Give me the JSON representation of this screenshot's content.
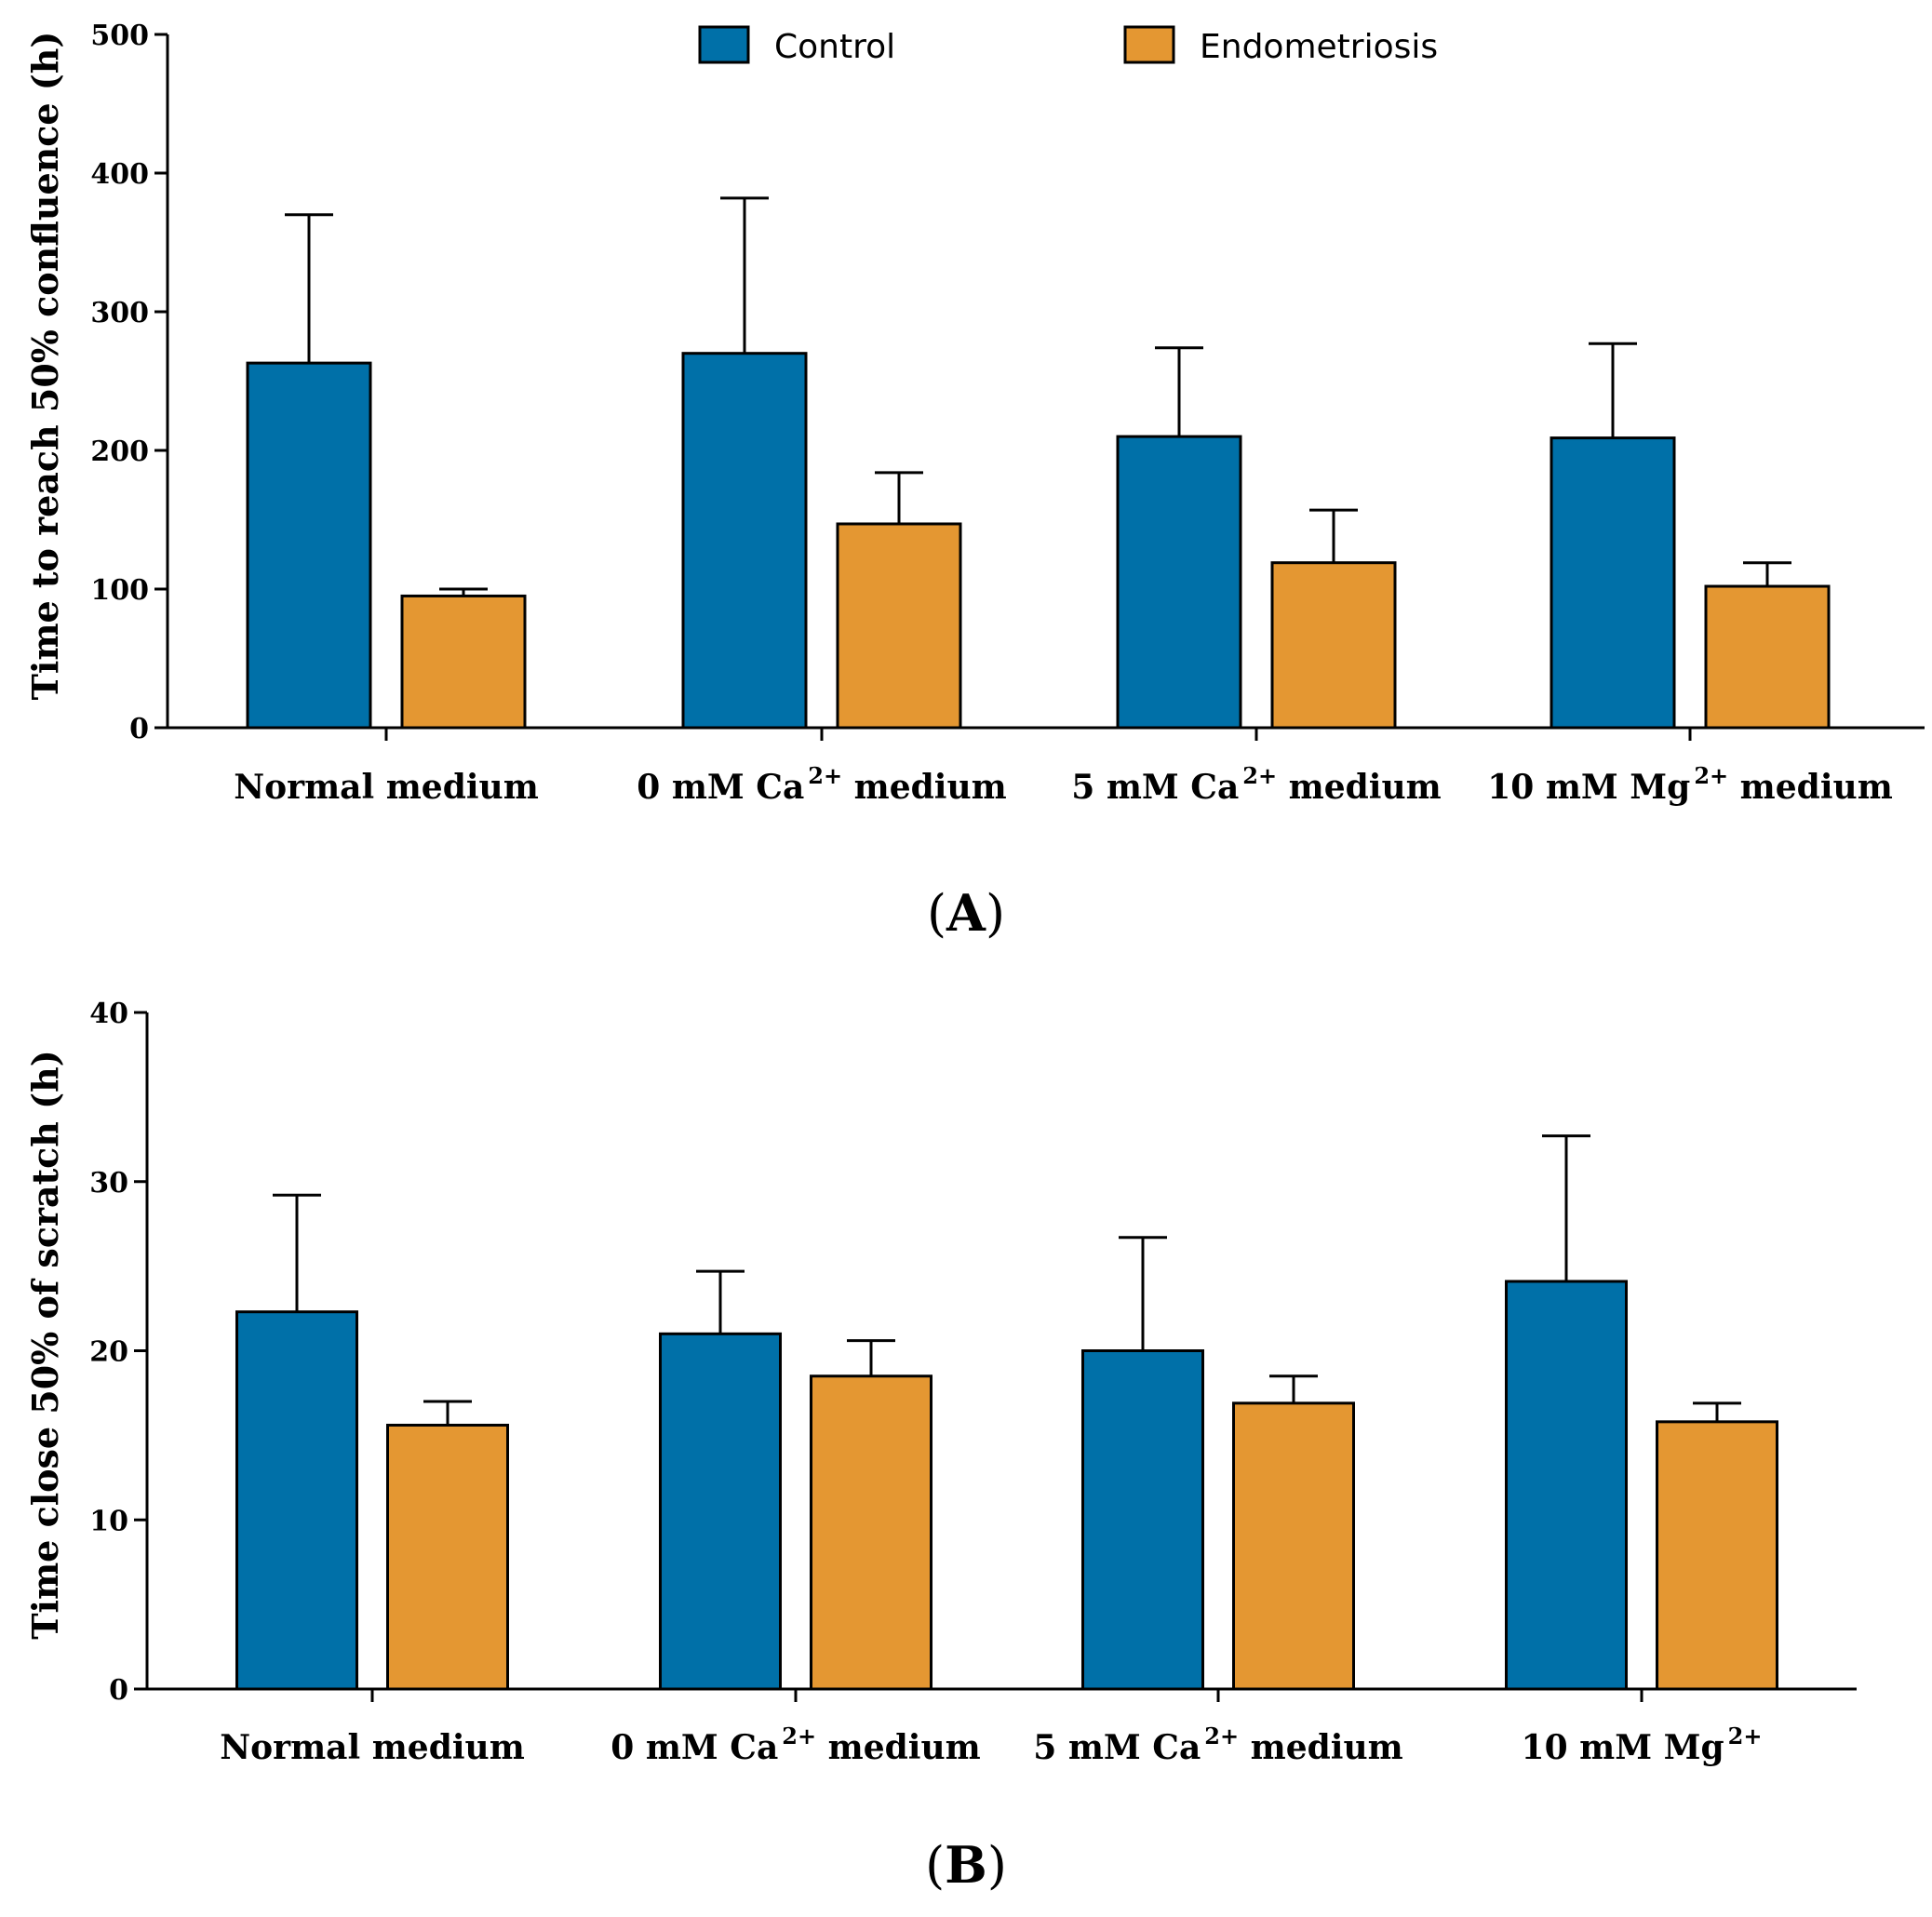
{
  "colors": {
    "Control": "#0070A8",
    "Endometriosis": "#E49732",
    "axis": "#000000"
  },
  "legend": [
    {
      "label": "Control",
      "color": "#0070A8"
    },
    {
      "label": "Endometriosis",
      "color": "#E49732"
    }
  ],
  "chart_data": [
    {
      "type": "bar",
      "panel_label": "A",
      "ylabel": "Time to reach 50% confluence (h)",
      "ylim": [
        0,
        500
      ],
      "yticks": [
        0,
        100,
        200,
        300,
        400,
        500
      ],
      "categories": [
        {
          "base": "Normal medium",
          "sup": "",
          "rest": ""
        },
        {
          "base": "0 mM Ca",
          "sup": "2+",
          "rest": " medium"
        },
        {
          "base": "5 mM Ca",
          "sup": "2+",
          "rest": " medium"
        },
        {
          "base": "10 mM Mg",
          "sup": "2+",
          "rest": " medium"
        }
      ],
      "series": [
        {
          "name": "Control",
          "values": [
            263,
            270,
            210,
            209
          ],
          "errors": [
            107,
            112,
            64,
            68
          ]
        },
        {
          "name": "Endometriosis",
          "values": [
            95,
            147,
            119,
            102
          ],
          "errors": [
            5,
            37,
            38,
            17
          ]
        }
      ]
    },
    {
      "type": "bar",
      "panel_label": "B",
      "ylabel": "Time close 50% of scratch (h)",
      "ylim": [
        0,
        40
      ],
      "yticks": [
        0,
        10,
        20,
        30,
        40
      ],
      "categories": [
        {
          "base": "Normal medium",
          "sup": "",
          "rest": ""
        },
        {
          "base": "0 mM Ca",
          "sup": "2+",
          "rest": " medium"
        },
        {
          "base": "5 mM Ca",
          "sup": "2+",
          "rest": " medium"
        },
        {
          "base": "10 mM Mg",
          "sup": "2+",
          "rest": ""
        }
      ],
      "series": [
        {
          "name": "Control",
          "values": [
            22.3,
            21.0,
            20.0,
            24.1
          ],
          "errors": [
            6.9,
            3.7,
            6.7,
            8.6
          ]
        },
        {
          "name": "Endometriosis",
          "values": [
            15.6,
            18.5,
            16.9,
            15.8
          ],
          "errors": [
            1.4,
            2.1,
            1.6,
            1.1
          ]
        }
      ]
    }
  ]
}
